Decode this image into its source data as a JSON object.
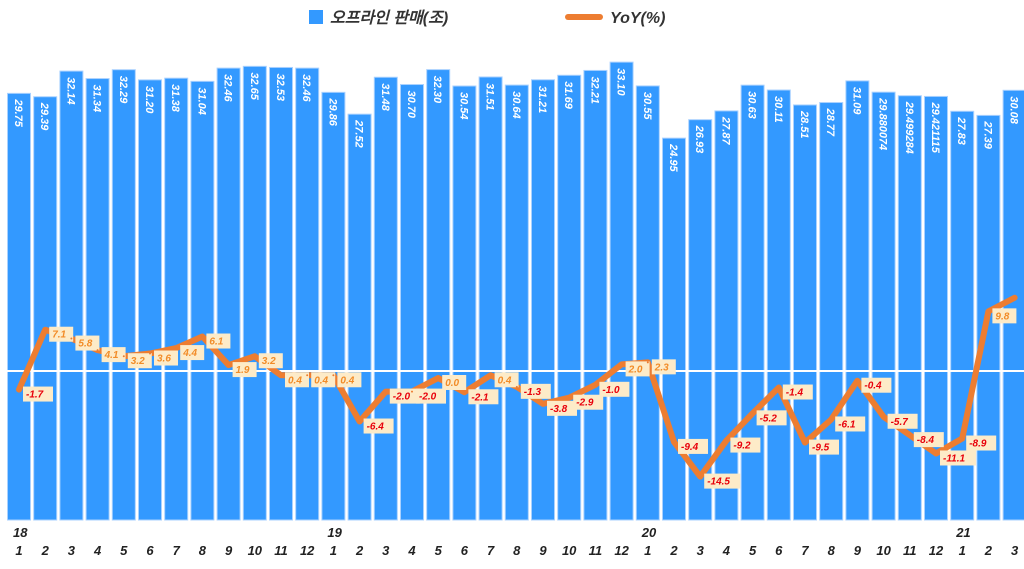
{
  "chart_data": {
    "type": "bar+line",
    "title": "",
    "legend": {
      "position": "top",
      "entries": [
        "오프라인 판매(조)",
        "YoY(%)"
      ]
    },
    "colors": {
      "bars": "#3399ff",
      "line": "#ed7d31",
      "label_bg": "#fdebc8",
      "neg_text": "#e8000b",
      "pos_text": "#f28c28"
    },
    "years": [
      {
        "label": "18",
        "index": 0
      },
      {
        "label": "19",
        "index": 12
      },
      {
        "label": "20",
        "index": 24
      },
      {
        "label": "21",
        "index": 36
      }
    ],
    "categories": [
      "1",
      "2",
      "3",
      "4",
      "5",
      "6",
      "7",
      "8",
      "9",
      "10",
      "11",
      "12",
      "1",
      "2",
      "3",
      "4",
      "5",
      "6",
      "7",
      "8",
      "9",
      "10",
      "11",
      "12",
      "1",
      "2",
      "3",
      "4",
      "5",
      "6",
      "7",
      "8",
      "9",
      "10",
      "11",
      "12",
      "1",
      "2",
      "3"
    ],
    "series": [
      {
        "name": "오프라인 판매(조)",
        "type": "bar",
        "axis": "left",
        "ylim": [
          -16,
          40
        ],
        "values": [
          29.75,
          29.39,
          32.14,
          31.34,
          32.29,
          31.2,
          31.38,
          31.04,
          32.46,
          32.65,
          32.53,
          32.46,
          29.86,
          27.52,
          31.48,
          30.7,
          32.3,
          30.54,
          31.51,
          30.64,
          31.21,
          31.69,
          32.21,
          33.1,
          30.55,
          24.95,
          26.93,
          27.87,
          30.63,
          30.11,
          28.51,
          28.77,
          31.09,
          29.880074,
          29.499284,
          29.421115,
          27.83,
          27.39,
          30.08
        ],
        "labels": [
          "29.75",
          "29.39",
          "32.14",
          "31.34",
          "32.29",
          "31.20",
          "31.38",
          "31.04",
          "32.46",
          "32.65",
          "32.53",
          "32.46",
          "29.86",
          "27.52",
          "31.48",
          "30.70",
          "32.30",
          "30.54",
          "31.51",
          "30.64",
          "31.21",
          "31.69",
          "32.21",
          "33.10",
          "30.55",
          "24.95",
          "26.93",
          "27.87",
          "30.63",
          "30.11",
          "28.51",
          "28.77",
          "31.09",
          "29.880074",
          "29.499284",
          "29.421115",
          "27.83",
          "27.39",
          "30.08"
        ]
      },
      {
        "name": "YoY(%)",
        "type": "line",
        "axis": "right",
        "values": [
          -1.7,
          7.1,
          5.8,
          4.1,
          3.2,
          3.6,
          4.4,
          6.1,
          1.9,
          3.2,
          0.4,
          0.4,
          0.4,
          -6.4,
          -2.0,
          -2.0,
          0.0,
          -2.1,
          0.4,
          -1.3,
          -3.8,
          -2.9,
          -1.0,
          2.0,
          2.3,
          -9.4,
          -14.5,
          -9.2,
          -5.2,
          -1.4,
          -9.5,
          -6.1,
          -0.4,
          -5.7,
          -8.4,
          -11.1,
          -8.9,
          9.8,
          11.8
        ],
        "labels": [
          "-1.7",
          "7.1",
          "5.8",
          "4.1",
          "3.2",
          "3.6",
          "4.4",
          "6.1",
          "1.9",
          "3.2",
          "0.4",
          "0.4",
          "0.4",
          "-6.4",
          "-2.0",
          "-2.0",
          "0.0",
          "-2.1",
          "0.4",
          "-1.3",
          "-3.8",
          "-2.9",
          "-1.0",
          "2.0",
          "2.3",
          "-9.4",
          "-14.5",
          "-9.2",
          "-5.2",
          "-1.4",
          "-9.5",
          "-6.1",
          "-0.4",
          "-5.7",
          "-8.4",
          "-11.1",
          "-8.9",
          "9.8",
          ""
        ]
      }
    ]
  }
}
